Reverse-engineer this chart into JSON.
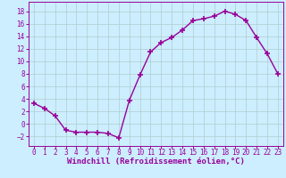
{
  "x": [
    0,
    1,
    2,
    3,
    4,
    5,
    6,
    7,
    8,
    9,
    10,
    11,
    12,
    13,
    14,
    15,
    16,
    17,
    18,
    19,
    20,
    21,
    22,
    23
  ],
  "y": [
    3.3,
    2.5,
    1.3,
    -1.0,
    -1.3,
    -1.3,
    -1.3,
    -1.5,
    -2.2,
    3.8,
    7.8,
    11.5,
    13.0,
    13.8,
    15.0,
    16.5,
    16.8,
    17.2,
    18.0,
    17.5,
    16.5,
    13.8,
    11.2,
    8.0
  ],
  "line_color": "#990099",
  "marker": "+",
  "marker_size": 5,
  "marker_linewidth": 1.2,
  "bg_color": "#cceeff",
  "grid_color": "#b0cccc",
  "xlabel": "Windchill (Refroidissement éolien,°C)",
  "xlabel_color": "#990099",
  "xlabel_fontsize": 6.5,
  "xlim": [
    -0.5,
    23.5
  ],
  "ylim": [
    -3.5,
    19.5
  ],
  "yticks": [
    -2,
    0,
    2,
    4,
    6,
    8,
    10,
    12,
    14,
    16,
    18
  ],
  "xticks": [
    0,
    1,
    2,
    3,
    4,
    5,
    6,
    7,
    8,
    9,
    10,
    11,
    12,
    13,
    14,
    15,
    16,
    17,
    18,
    19,
    20,
    21,
    22,
    23
  ],
  "tick_color": "#990099",
  "tick_fontsize": 5.5,
  "line_width": 1.0
}
